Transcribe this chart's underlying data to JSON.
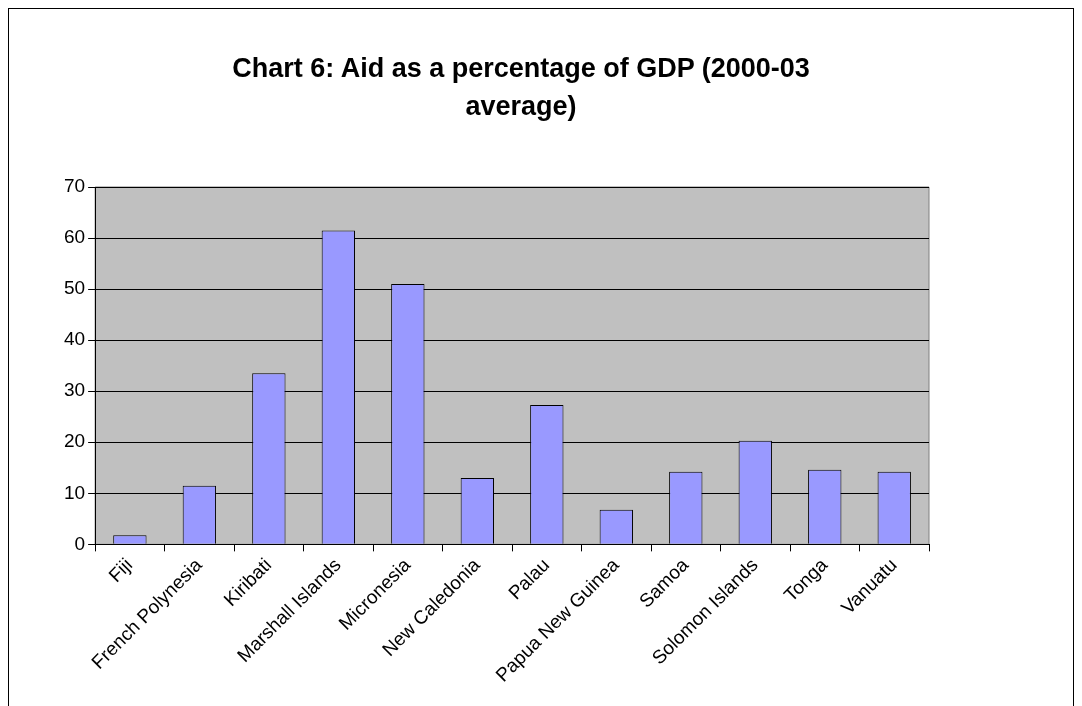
{
  "chart_data": {
    "type": "bar",
    "title": "Chart 6: Aid as a percentage of GDP (2000-03 average)",
    "categories": [
      "Fiji",
      "French Polynesia",
      "Kiribati",
      "Marshall Islands",
      "Micronesia",
      "New Caledonia",
      "Palau",
      "Papua New Guinea",
      "Samoa",
      "Solomon Islands",
      "Tonga",
      "Vanuatu"
    ],
    "values": [
      1.8,
      11.5,
      33.5,
      61.5,
      51,
      13,
      27.3,
      6.8,
      14.2,
      20.3,
      14.6,
      14.2
    ],
    "color": "#9999ff",
    "ylim": [
      0,
      70
    ],
    "yticks": [
      0,
      10,
      20,
      30,
      40,
      50,
      60,
      70
    ],
    "grid": "y",
    "legend": false
  }
}
